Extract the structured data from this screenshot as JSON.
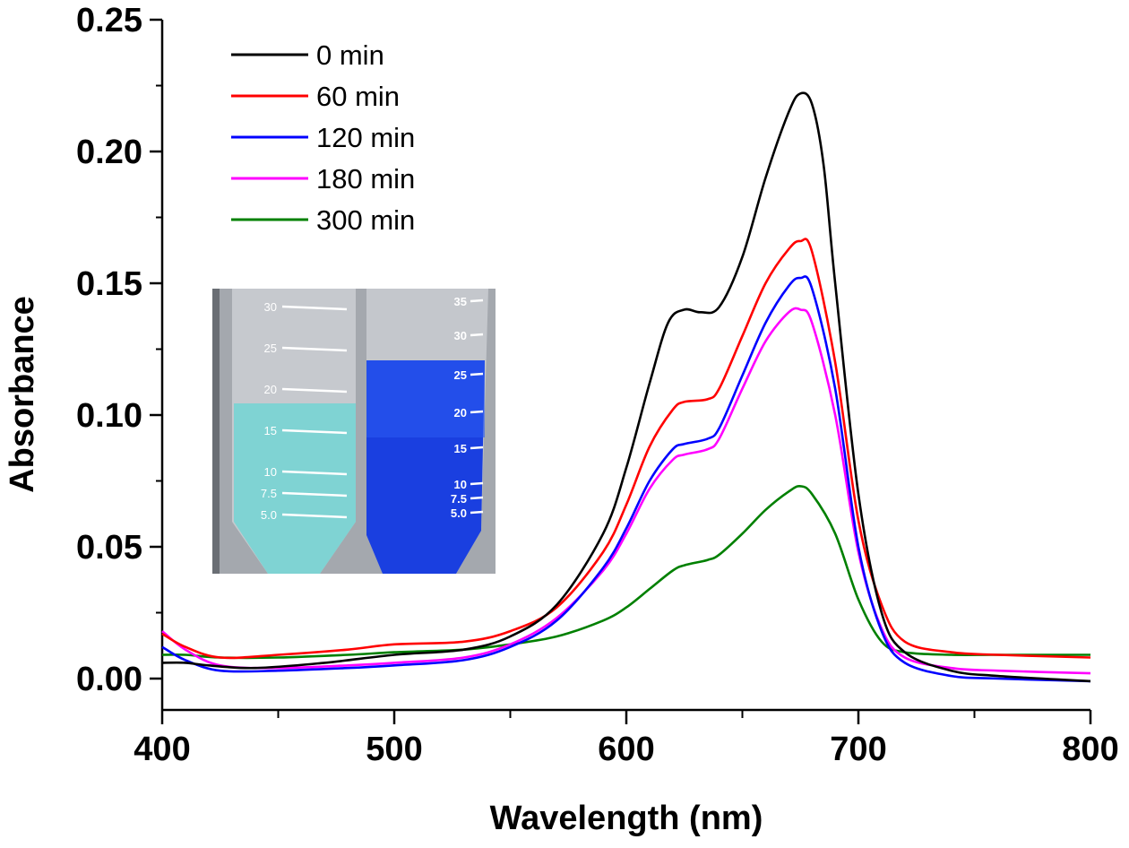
{
  "chart_data": {
    "type": "line",
    "title": "",
    "xlabel": "Wavelength (nm)",
    "ylabel": "Absorbance",
    "xlim": [
      400,
      800
    ],
    "ylim": [
      -0.012,
      0.25
    ],
    "xticks": [
      400,
      500,
      600,
      700,
      800
    ],
    "xtick_labels": [
      "400",
      "500",
      "600",
      "700",
      "800"
    ],
    "yticks": [
      0.0,
      0.05,
      0.1,
      0.15,
      0.2,
      0.25
    ],
    "ytick_labels": [
      "0.00",
      "0.05",
      "0.10",
      "0.15",
      "0.20",
      "0.25"
    ],
    "grid": false,
    "legend_position": "top-left",
    "series": [
      {
        "name": "0 min",
        "color": "#000000",
        "x": [
          400,
          410,
          420,
          440,
          470,
          500,
          530,
          550,
          570,
          590,
          600,
          610,
          618,
          625,
          632,
          640,
          650,
          660,
          670,
          675,
          680,
          685,
          690,
          700,
          710,
          720,
          740,
          760,
          800
        ],
        "y": [
          0.006,
          0.006,
          0.005,
          0.004,
          0.006,
          0.009,
          0.011,
          0.016,
          0.028,
          0.055,
          0.08,
          0.112,
          0.135,
          0.14,
          0.139,
          0.141,
          0.16,
          0.19,
          0.215,
          0.222,
          0.218,
          0.195,
          0.15,
          0.07,
          0.025,
          0.01,
          0.003,
          0.001,
          -0.001
        ]
      },
      {
        "name": "60 min",
        "color": "#ff0000",
        "x": [
          400,
          410,
          425,
          450,
          480,
          500,
          530,
          550,
          570,
          590,
          600,
          610,
          620,
          625,
          635,
          640,
          650,
          660,
          670,
          675,
          680,
          690,
          700,
          710,
          720,
          740,
          760,
          800
        ],
        "y": [
          0.017,
          0.012,
          0.008,
          0.009,
          0.011,
          0.013,
          0.014,
          0.018,
          0.027,
          0.048,
          0.066,
          0.088,
          0.102,
          0.105,
          0.106,
          0.11,
          0.13,
          0.15,
          0.163,
          0.166,
          0.162,
          0.12,
          0.06,
          0.028,
          0.014,
          0.01,
          0.009,
          0.008
        ]
      },
      {
        "name": "120 min",
        "color": "#0000ff",
        "x": [
          400,
          410,
          425,
          450,
          480,
          500,
          530,
          550,
          570,
          590,
          600,
          610,
          620,
          625,
          635,
          640,
          650,
          660,
          670,
          675,
          680,
          690,
          700,
          710,
          720,
          740,
          760,
          800
        ],
        "y": [
          0.012,
          0.007,
          0.003,
          0.003,
          0.004,
          0.005,
          0.007,
          0.012,
          0.022,
          0.042,
          0.057,
          0.075,
          0.087,
          0.089,
          0.091,
          0.095,
          0.115,
          0.135,
          0.149,
          0.152,
          0.148,
          0.11,
          0.05,
          0.018,
          0.006,
          0.001,
          0.0,
          -0.001
        ]
      },
      {
        "name": "180 min",
        "color": "#ff00ff",
        "x": [
          400,
          410,
          425,
          450,
          480,
          500,
          530,
          550,
          570,
          590,
          600,
          610,
          620,
          625,
          635,
          640,
          650,
          660,
          670,
          675,
          680,
          690,
          700,
          710,
          720,
          740,
          760,
          800
        ],
        "y": [
          0.018,
          0.011,
          0.005,
          0.004,
          0.005,
          0.006,
          0.008,
          0.013,
          0.023,
          0.041,
          0.055,
          0.072,
          0.083,
          0.085,
          0.087,
          0.091,
          0.11,
          0.128,
          0.139,
          0.14,
          0.135,
          0.1,
          0.048,
          0.019,
          0.008,
          0.004,
          0.003,
          0.002
        ]
      },
      {
        "name": "300 min",
        "color": "#008000",
        "x": [
          400,
          410,
          425,
          450,
          480,
          500,
          530,
          550,
          570,
          590,
          600,
          610,
          620,
          625,
          635,
          640,
          650,
          660,
          670,
          675,
          680,
          690,
          700,
          710,
          720,
          740,
          760,
          800
        ],
        "y": [
          0.009,
          0.009,
          0.008,
          0.008,
          0.009,
          0.01,
          0.011,
          0.013,
          0.016,
          0.022,
          0.027,
          0.034,
          0.041,
          0.043,
          0.045,
          0.047,
          0.055,
          0.064,
          0.071,
          0.073,
          0.07,
          0.055,
          0.03,
          0.014,
          0.01,
          0.009,
          0.009,
          0.009
        ]
      }
    ]
  },
  "inset": {
    "description": "photo of two conical tubes",
    "left_tube": {
      "color": "#7fd3d3",
      "labels": [
        "30",
        "25",
        "20",
        "15",
        "10",
        "7.5",
        "5.0"
      ]
    },
    "right_tube": {
      "color": "#1a3fe0",
      "labels": [
        "35",
        "30",
        "25",
        "20",
        "15",
        "10",
        "7.5",
        "5.0"
      ]
    }
  }
}
